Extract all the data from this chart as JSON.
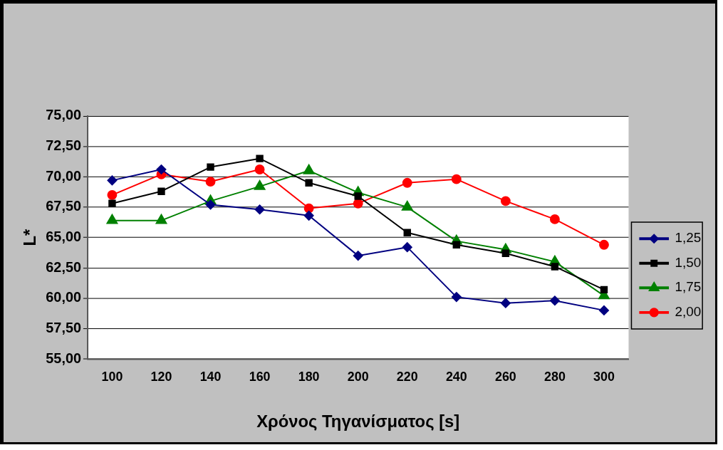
{
  "chart_data": {
    "type": "line",
    "xlabel": "Χρόνος Τηγανίσματος [s]",
    "ylabel": "L*",
    "categories": [
      "100",
      "120",
      "140",
      "160",
      "180",
      "200",
      "220",
      "240",
      "260",
      "280",
      "300"
    ],
    "series": [
      {
        "name": "1,25",
        "color": "#000080",
        "marker": "diamond",
        "values": [
          69.7,
          70.6,
          67.7,
          67.3,
          66.8,
          63.5,
          64.2,
          60.1,
          59.6,
          59.8,
          59.0
        ]
      },
      {
        "name": "1,50",
        "color": "#000000",
        "marker": "square",
        "values": [
          67.8,
          68.8,
          70.8,
          71.5,
          69.5,
          68.4,
          65.4,
          64.4,
          63.7,
          62.6,
          60.7
        ]
      },
      {
        "name": "1,75",
        "color": "#008000",
        "marker": "triangle",
        "values": [
          66.4,
          66.4,
          68.0,
          69.2,
          70.5,
          68.7,
          67.5,
          64.7,
          64.0,
          63.0,
          60.2
        ]
      },
      {
        "name": "2,00",
        "color": "#ff0000",
        "marker": "circle",
        "values": [
          68.5,
          70.2,
          69.6,
          70.6,
          67.4,
          67.8,
          69.5,
          69.8,
          68.0,
          66.5,
          64.4
        ]
      }
    ],
    "ylim": [
      55,
      75
    ],
    "yticks": [
      {
        "value": 55,
        "label": "55,00"
      },
      {
        "value": 57.5,
        "label": "57,50"
      },
      {
        "value": 60,
        "label": "60,00"
      },
      {
        "value": 62.5,
        "label": "62,50"
      },
      {
        "value": 65,
        "label": "65,00"
      },
      {
        "value": 67.5,
        "label": "67,50"
      },
      {
        "value": 70,
        "label": "70,00"
      },
      {
        "value": 72.5,
        "label": "72,50"
      },
      {
        "value": 75,
        "label": "75,00"
      }
    ],
    "grid": "y",
    "legend": "right",
    "line_style": "solid"
  }
}
